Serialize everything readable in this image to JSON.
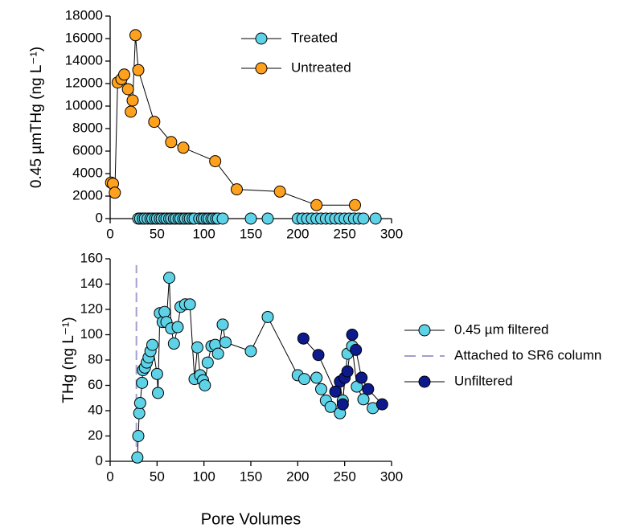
{
  "chart_data": [
    {
      "type": "line",
      "y_label": "0.45 µmTHg (ng L⁻¹)",
      "xlim": [
        0,
        300
      ],
      "xticks": [
        0,
        50,
        100,
        150,
        200,
        250,
        300
      ],
      "ylim": [
        0,
        18000
      ],
      "yticks": [
        0,
        2000,
        4000,
        6000,
        8000,
        10000,
        12000,
        14000,
        16000,
        18000
      ],
      "legend": "upper right",
      "series": [
        {
          "name": "Treated",
          "color": "#5ed3e8",
          "markers": true,
          "x": [
            30,
            32,
            35,
            37,
            40,
            43,
            45,
            48,
            50,
            53,
            55,
            58,
            60,
            63,
            65,
            68,
            70,
            73,
            75,
            78,
            80,
            83,
            85,
            88,
            90,
            95,
            98,
            100,
            103,
            105,
            108,
            110,
            113,
            115,
            120,
            150,
            168,
            200,
            205,
            210,
            215,
            220,
            225,
            230,
            235,
            240,
            245,
            250,
            255,
            260,
            265,
            270,
            283
          ],
          "values": [
            0,
            0,
            0,
            0,
            0,
            0,
            0,
            0,
            0,
            0,
            0,
            0,
            0,
            0,
            0,
            0,
            0,
            0,
            0,
            0,
            0,
            0,
            0,
            0,
            0,
            0,
            0,
            0,
            0,
            0,
            0,
            0,
            0,
            0,
            0,
            0,
            0,
            0,
            0,
            0,
            0,
            0,
            0,
            0,
            0,
            0,
            0,
            0,
            0,
            0,
            0,
            0,
            0
          ]
        },
        {
          "name": "Untreated",
          "color": "#ffa11c",
          "markers": true,
          "x": [
            1,
            3,
            5,
            8,
            12,
            15,
            19,
            22,
            24,
            27,
            30,
            47,
            65,
            78,
            112,
            135,
            181,
            220,
            261
          ],
          "values": [
            3200,
            3100,
            2300,
            12100,
            12400,
            12800,
            11500,
            9500,
            10500,
            16300,
            13200,
            8600,
            6800,
            6300,
            5100,
            2600,
            2400,
            1200,
            1200
          ]
        }
      ]
    },
    {
      "type": "line",
      "x_label": "Pore Volumes",
      "y_label": "THg (ng L⁻¹)",
      "xlim": [
        0,
        300
      ],
      "xticks": [
        0,
        50,
        100,
        150,
        200,
        250,
        300
      ],
      "ylim": [
        0,
        160
      ],
      "yticks": [
        0,
        20,
        40,
        60,
        80,
        100,
        120,
        140,
        160
      ],
      "legend": "right outside",
      "series": [
        {
          "name": "0.45 µm filtered",
          "color": "#5ed3e8",
          "markers": true,
          "x": [
            29,
            30,
            31,
            32,
            34,
            35,
            37,
            39,
            41,
            43,
            45,
            50,
            51,
            53,
            56,
            58,
            60,
            63,
            65,
            68,
            72,
            75,
            80,
            85,
            90,
            93,
            96,
            99,
            101,
            104,
            108,
            112,
            115,
            120,
            123,
            150,
            168,
            200,
            207,
            220,
            225,
            230,
            235,
            245,
            248,
            253,
            258,
            263,
            270,
            280
          ],
          "values": [
            3,
            20,
            38,
            46,
            62,
            72,
            74,
            78,
            82,
            87,
            92,
            69,
            54,
            117,
            110,
            118,
            110,
            145,
            105,
            93,
            106,
            122,
            124,
            124,
            65,
            90,
            68,
            64,
            60,
            78,
            91,
            92,
            85,
            108,
            94,
            87,
            114,
            68,
            65,
            66,
            57,
            48,
            43,
            38,
            48,
            85,
            91,
            59,
            49,
            42
          ]
        },
        {
          "name": "Attached to SR6 column",
          "color": "#a0a0cc",
          "markers": false,
          "style": "dashed",
          "x": [
            28,
            28
          ],
          "values": [
            0,
            155
          ]
        },
        {
          "name": "Unfiltered",
          "color": "#0d1a8e",
          "markers": true,
          "x": [
            206,
            222,
            240,
            245,
            248,
            250,
            253,
            258,
            262,
            268,
            275,
            290
          ],
          "values": [
            97,
            84,
            55,
            63,
            45,
            66,
            71,
            100,
            88,
            66,
            57,
            45
          ]
        }
      ]
    }
  ]
}
